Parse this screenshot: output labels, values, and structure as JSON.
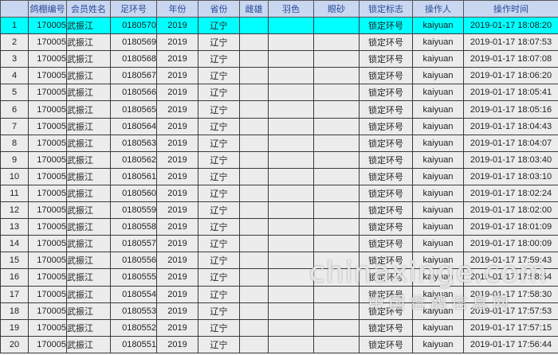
{
  "columns": [
    "",
    "鸽棚编号",
    "会员姓名",
    "足环号",
    "年份",
    "省份",
    "雌雄",
    "羽色",
    "眼砂",
    "锁定标志",
    "操作人",
    "操作时间"
  ],
  "selected_row": 1,
  "colors": {
    "header_bg": "#c9d7f0",
    "header_text": "#2a4a9a",
    "selected_bg": "#00ffff",
    "row_bg": "#ececec"
  },
  "rows": [
    [
      "1",
      "170005",
      "武振江",
      "0180570",
      "2019",
      "辽宁",
      "",
      "",
      "",
      "锁定环号",
      "kaiyuan",
      "2019-01-17 18:08:20"
    ],
    [
      "2",
      "170005",
      "武振江",
      "0180569",
      "2019",
      "辽宁",
      "",
      "",
      "",
      "锁定环号",
      "kaiyuan",
      "2019-01-17 18:07:53"
    ],
    [
      "3",
      "170005",
      "武振江",
      "0180568",
      "2019",
      "辽宁",
      "",
      "",
      "",
      "锁定环号",
      "kaiyuan",
      "2019-01-17 18:07:08"
    ],
    [
      "4",
      "170005",
      "武振江",
      "0180567",
      "2019",
      "辽宁",
      "",
      "",
      "",
      "锁定环号",
      "kaiyuan",
      "2019-01-17 18:06:20"
    ],
    [
      "5",
      "170005",
      "武振江",
      "0180566",
      "2019",
      "辽宁",
      "",
      "",
      "",
      "锁定环号",
      "kaiyuan",
      "2019-01-17 18:05:41"
    ],
    [
      "6",
      "170005",
      "武振江",
      "0180565",
      "2019",
      "辽宁",
      "",
      "",
      "",
      "锁定环号",
      "kaiyuan",
      "2019-01-17 18:05:16"
    ],
    [
      "7",
      "170005",
      "武振江",
      "0180564",
      "2019",
      "辽宁",
      "",
      "",
      "",
      "锁定环号",
      "kaiyuan",
      "2019-01-17 18:04:43"
    ],
    [
      "8",
      "170005",
      "武振江",
      "0180563",
      "2019",
      "辽宁",
      "",
      "",
      "",
      "锁定环号",
      "kaiyuan",
      "2019-01-17 18:04:07"
    ],
    [
      "9",
      "170005",
      "武振江",
      "0180562",
      "2019",
      "辽宁",
      "",
      "",
      "",
      "锁定环号",
      "kaiyuan",
      "2019-01-17 18:03:40"
    ],
    [
      "10",
      "170005",
      "武振江",
      "0180561",
      "2019",
      "辽宁",
      "",
      "",
      "",
      "锁定环号",
      "kaiyuan",
      "2019-01-17 18:03:10"
    ],
    [
      "11",
      "170005",
      "武振江",
      "0180560",
      "2019",
      "辽宁",
      "",
      "",
      "",
      "锁定环号",
      "kaiyuan",
      "2019-01-17 18:02:24"
    ],
    [
      "12",
      "170005",
      "武振江",
      "0180559",
      "2019",
      "辽宁",
      "",
      "",
      "",
      "锁定环号",
      "kaiyuan",
      "2019-01-17 18:02:00"
    ],
    [
      "13",
      "170005",
      "武振江",
      "0180558",
      "2019",
      "辽宁",
      "",
      "",
      "",
      "锁定环号",
      "kaiyuan",
      "2019-01-17 18:01:09"
    ],
    [
      "14",
      "170005",
      "武振江",
      "0180557",
      "2019",
      "辽宁",
      "",
      "",
      "",
      "锁定环号",
      "kaiyuan",
      "2019-01-17 18:00:09"
    ],
    [
      "15",
      "170005",
      "武振江",
      "0180556",
      "2019",
      "辽宁",
      "",
      "",
      "",
      "锁定环号",
      "kaiyuan",
      "2019-01-17 17:59:43"
    ],
    [
      "16",
      "170005",
      "武振江",
      "0180555",
      "2019",
      "辽宁",
      "",
      "",
      "",
      "锁定环号",
      "kaiyuan",
      "2019-01-17 17:58:54"
    ],
    [
      "17",
      "170005",
      "武振江",
      "0180554",
      "2019",
      "辽宁",
      "",
      "",
      "",
      "锁定环号",
      "kaiyuan",
      "2019-01-17 17:58:30"
    ],
    [
      "18",
      "170005",
      "武振江",
      "0180553",
      "2019",
      "辽宁",
      "",
      "",
      "",
      "锁定环号",
      "kaiyuan",
      "2019-01-17 17:57:53"
    ],
    [
      "19",
      "170005",
      "武振江",
      "0180552",
      "2019",
      "辽宁",
      "",
      "",
      "",
      "锁定环号",
      "kaiyuan",
      "2019-01-17 17:57:15"
    ],
    [
      "20",
      "170005",
      "武振江",
      "0180551",
      "2019",
      "辽宁",
      "",
      "",
      "",
      "锁定环号",
      "kaiyuan",
      "2019-01-17 17:56:44"
    ]
  ],
  "watermark": {
    "line1": "chinaxinge.com",
    "line2": "中国信鸽信息网"
  }
}
